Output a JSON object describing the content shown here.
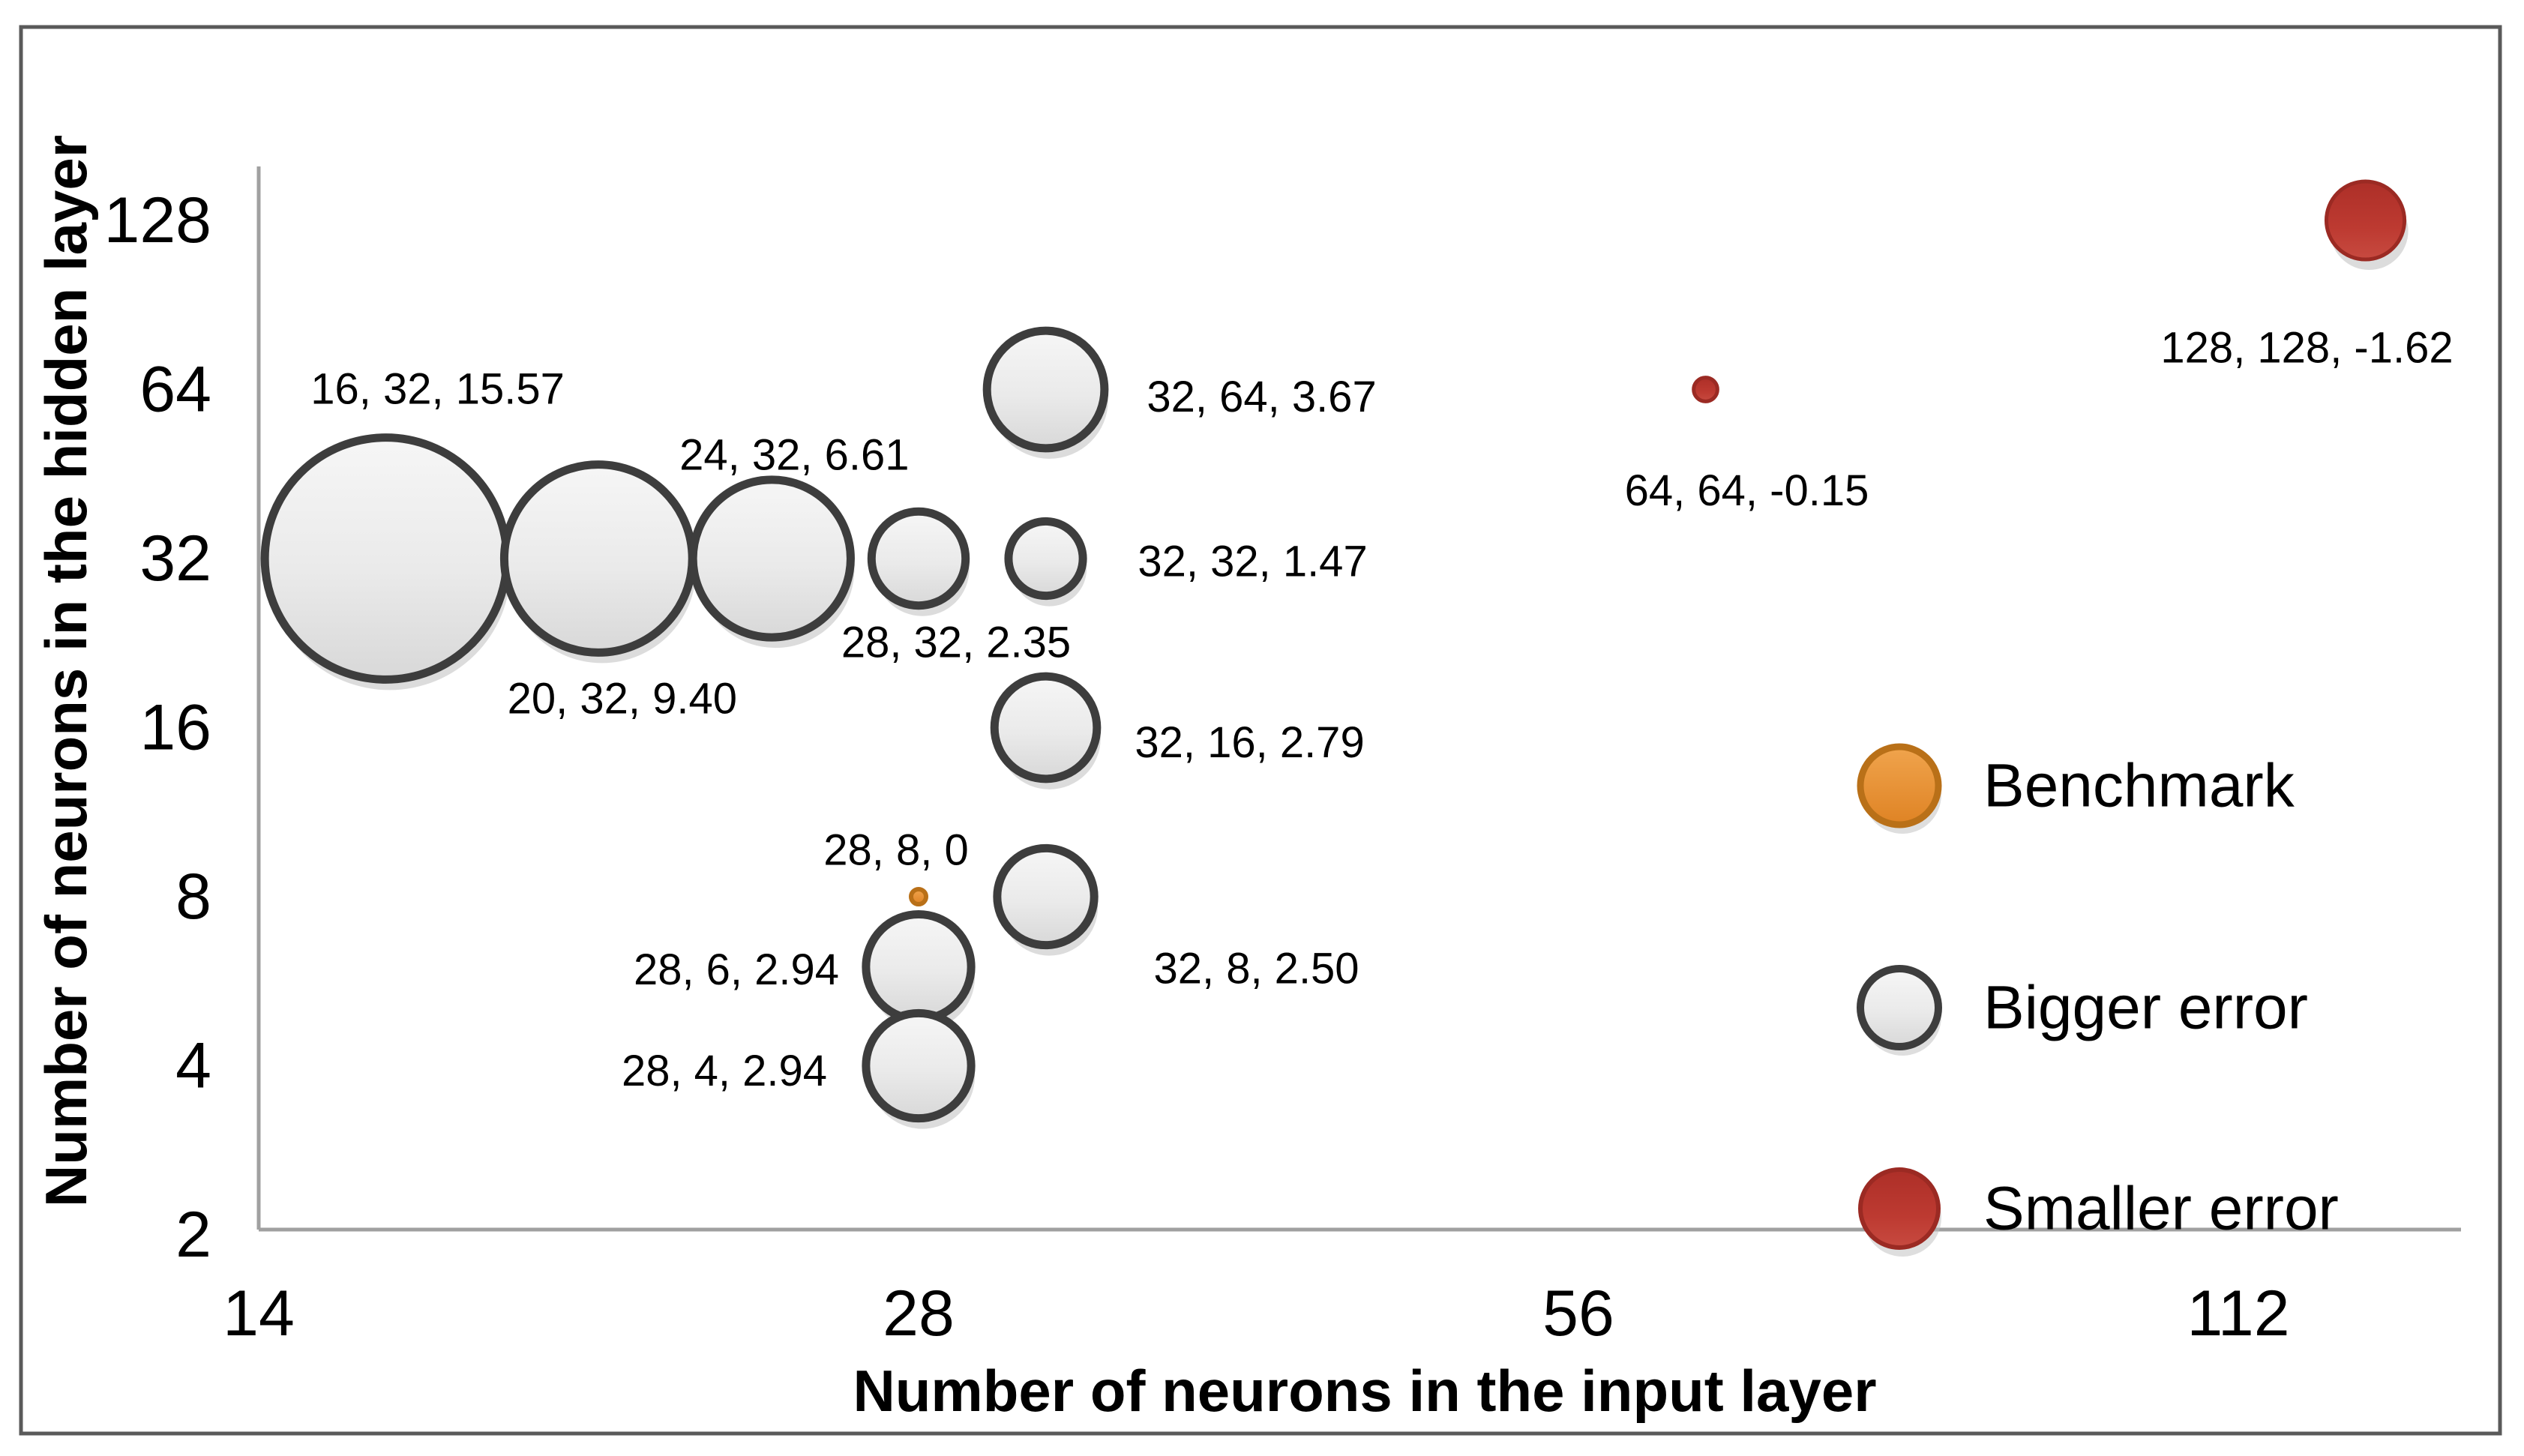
{
  "chart_data": {
    "type": "bubble",
    "title": "",
    "xlabel": "Number of neurons in the input layer",
    "ylabel": "Number of neurons in the hidden layer",
    "x_scale": "log2",
    "y_scale": "log2",
    "x_ticks": [
      14,
      28,
      56,
      112
    ],
    "y_ticks": [
      2,
      4,
      8,
      16,
      32,
      64,
      128
    ],
    "x_range": [
      14,
      140
    ],
    "y_range": [
      2,
      150
    ],
    "grid": false,
    "size_encoding": "bubble area proportional to |error|, labels are: input, hidden, error",
    "colors": {
      "benchmark_fill": "#ee9c3c",
      "benchmark_border": "#b97018",
      "bigger_error_fill": "#ededed",
      "bigger_error_border": "#3d3d3d",
      "smaller_error_fill": "#bd3a31",
      "smaller_error_border": "#9b2a23",
      "axis_line": "#a0a0a0",
      "chart_border": "#5a5a5a"
    },
    "legend": {
      "position": "right",
      "entries": [
        {
          "label": "Benchmark",
          "fill": "#ee9c3c",
          "border": "#b97018"
        },
        {
          "label": "Bigger error",
          "fill": "#ededed",
          "border": "#3d3d3d"
        },
        {
          "label": "Smaller error",
          "fill": "#bd3a31",
          "border": "#9b2a23"
        }
      ]
    },
    "series": [
      {
        "name": "Bigger error",
        "gradient": "gradGray",
        "border": "#3d3d3d",
        "border_width": 11,
        "points": [
          {
            "x": 16,
            "y": 32,
            "error": 15.57,
            "label": "16, 32, 15.57",
            "label_dx": 69,
            "label_dy": -226
          },
          {
            "x": 20,
            "y": 32,
            "error": 9.4,
            "label": "20, 32, 9.40",
            "label_dx": 32,
            "label_dy": 187
          },
          {
            "x": 24,
            "y": 32,
            "error": 6.61,
            "label": "24, 32, 6.61",
            "label_dx": 30,
            "label_dy": -138
          },
          {
            "x": 28,
            "y": 32,
            "error": 2.35,
            "label": "28, 32, 2.35",
            "label_dx": 50,
            "label_dy": 112
          },
          {
            "x": 32,
            "y": 32,
            "error": 1.47,
            "label": "32, 32, 1.47",
            "label_dx": 276,
            "label_dy": 4
          },
          {
            "x": 32,
            "y": 64,
            "error": 3.67,
            "label": "32, 64, 3.67",
            "label_dx": 288,
            "label_dy": 10
          },
          {
            "x": 32,
            "y": 16,
            "error": 2.79,
            "label": "32, 16, 2.79",
            "label_dx": 272,
            "label_dy": 20
          },
          {
            "x": 32,
            "y": 8,
            "error": 2.5,
            "label": "32, 8, 2.50",
            "label_dx": 281,
            "label_dy": 96
          },
          {
            "x": 28,
            "y": 6,
            "error": 2.94,
            "label": "28, 6, 2.94",
            "label_dx": -243,
            "label_dy": 4
          },
          {
            "x": 28,
            "y": 4,
            "error": 2.94,
            "label": "28, 4, 2.94",
            "label_dx": -259,
            "label_dy": 7
          }
        ]
      },
      {
        "name": "Benchmark",
        "gradient": "gradOrange",
        "border": "#b97018",
        "border_width": 6,
        "points": [
          {
            "x": 28,
            "y": 8,
            "error": 0,
            "label": "28, 8, 0",
            "label_dx": -30,
            "label_dy": -62
          }
        ]
      },
      {
        "name": "Smaller error",
        "gradient": "gradRed",
        "border": "#9b2a23",
        "border_width": 5,
        "points": [
          {
            "x": 64,
            "y": 64,
            "error": -0.15,
            "label": "64, 64, -0.15",
            "label_dx": 55,
            "label_dy": 135
          },
          {
            "x": 128,
            "y": 128,
            "error": -1.62,
            "label": "128, 128, -1.62",
            "label_dx": -78,
            "label_dy": 170
          }
        ]
      }
    ]
  }
}
